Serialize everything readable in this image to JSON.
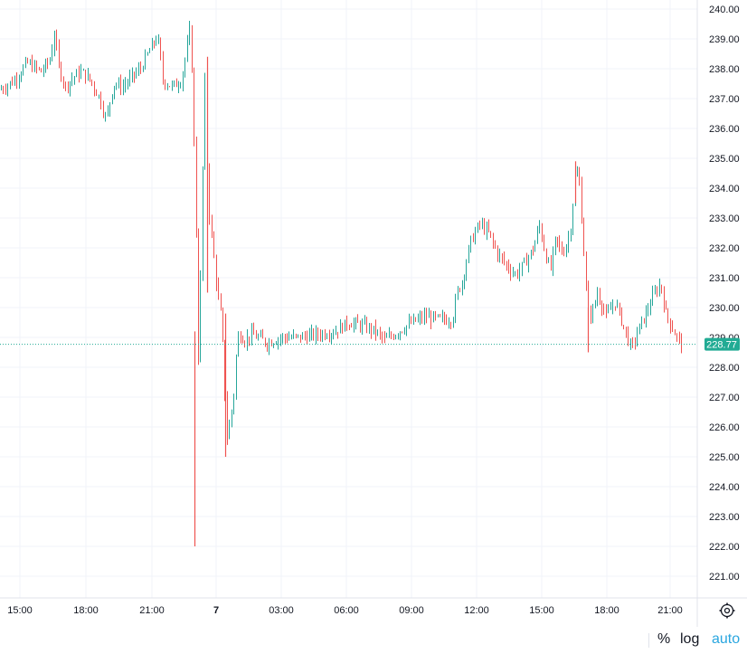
{
  "chart_data": {
    "type": "candlestick",
    "ylim": [
      220.5,
      240.2
    ],
    "y_ticks": [
      "221.00",
      "222.00",
      "223.00",
      "224.00",
      "225.00",
      "226.00",
      "227.00",
      "228.00",
      "229.00",
      "230.00",
      "231.00",
      "232.00",
      "233.00",
      "234.00",
      "235.00",
      "236.00",
      "237.00",
      "238.00",
      "239.00",
      "240.00"
    ],
    "x_ticks": [
      {
        "label": "15:00",
        "bold": false
      },
      {
        "label": "18:00",
        "bold": false
      },
      {
        "label": "21:00",
        "bold": false
      },
      {
        "label": "7",
        "bold": true
      },
      {
        "label": "03:00",
        "bold": false
      },
      {
        "label": "06:00",
        "bold": false
      },
      {
        "label": "09:00",
        "bold": false
      },
      {
        "label": "12:00",
        "bold": false
      },
      {
        "label": "15:00",
        "bold": false
      },
      {
        "label": "18:00",
        "bold": false
      },
      {
        "label": "21:00",
        "bold": false
      }
    ],
    "last_price": 228.77,
    "last_price_label": "228.77",
    "colors": {
      "up": "#26a69a",
      "down": "#ef5350",
      "price_badge": "#22ab94"
    },
    "path_points": [
      [
        0,
        237.3
      ],
      [
        15,
        237.6
      ],
      [
        30,
        238.2
      ],
      [
        45,
        237.9
      ],
      [
        55,
        238.3
      ],
      [
        60,
        239.2
      ],
      [
        65,
        238.0
      ],
      [
        72,
        237.4
      ],
      [
        80,
        237.7
      ],
      [
        90,
        237.9
      ],
      [
        100,
        237.6
      ],
      [
        110,
        237.0
      ],
      [
        117,
        236.3
      ],
      [
        125,
        237.5
      ],
      [
        135,
        237.4
      ],
      [
        145,
        237.7
      ],
      [
        155,
        238.0
      ],
      [
        165,
        238.6
      ],
      [
        174,
        239.1
      ],
      [
        180,
        237.6
      ],
      [
        190,
        237.4
      ],
      [
        200,
        237.6
      ],
      [
        206,
        238.6
      ],
      [
        210,
        239.4
      ],
      [
        213,
        237.0
      ],
      [
        217,
        232.0
      ],
      [
        219,
        228.3
      ],
      [
        222,
        231.5
      ],
      [
        226,
        238.0
      ],
      [
        230,
        233.5
      ],
      [
        235,
        232.0
      ],
      [
        240,
        230.5
      ],
      [
        245,
        229.5
      ],
      [
        248,
        227.3
      ],
      [
        251,
        225.6
      ],
      [
        254,
        226.2
      ],
      [
        258,
        227.0
      ],
      [
        262,
        229.0
      ],
      [
        266,
        229.1
      ],
      [
        270,
        228.9
      ],
      [
        278,
        229.1
      ],
      [
        285,
        229.0
      ],
      [
        295,
        228.8
      ],
      [
        310,
        229.0
      ],
      [
        330,
        229.0
      ],
      [
        350,
        229.1
      ],
      [
        370,
        229.2
      ],
      [
        385,
        229.5
      ],
      [
        400,
        229.4
      ],
      [
        415,
        229.2
      ],
      [
        425,
        228.9
      ],
      [
        440,
        229.2
      ],
      [
        455,
        229.5
      ],
      [
        470,
        229.7
      ],
      [
        485,
        229.6
      ],
      [
        500,
        229.6
      ],
      [
        505,
        230.5
      ],
      [
        510,
        230.8
      ],
      [
        515,
        231.5
      ],
      [
        520,
        232.2
      ],
      [
        530,
        232.8
      ],
      [
        540,
        232.5
      ],
      [
        550,
        231.8
      ],
      [
        560,
        231.4
      ],
      [
        570,
        231.1
      ],
      [
        580,
        231.5
      ],
      [
        590,
        232.0
      ],
      [
        596,
        232.8
      ],
      [
        602,
        231.9
      ],
      [
        608,
        231.2
      ],
      [
        614,
        232.3
      ],
      [
        622,
        231.8
      ],
      [
        630,
        232.5
      ],
      [
        636,
        234.5
      ],
      [
        640,
        234.4
      ],
      [
        645,
        232.0
      ],
      [
        650,
        229.7
      ],
      [
        655,
        229.9
      ],
      [
        660,
        230.5
      ],
      [
        670,
        229.7
      ],
      [
        680,
        230.2
      ],
      [
        690,
        229.3
      ],
      [
        698,
        228.6
      ],
      [
        706,
        229.3
      ],
      [
        714,
        229.8
      ],
      [
        722,
        230.4
      ],
      [
        730,
        230.8
      ],
      [
        736,
        229.8
      ],
      [
        742,
        229.4
      ],
      [
        748,
        229.0
      ],
      [
        755,
        228.77
      ]
    ],
    "spikes": [
      {
        "x": 215,
        "low": 222.0,
        "high": 229.2
      },
      {
        "x": 229,
        "low": 230.5,
        "high": 238.4
      },
      {
        "x": 249,
        "low": 225.0,
        "high": 229.8
      },
      {
        "x": 636,
        "low": 233.5,
        "high": 234.9
      },
      {
        "x": 650,
        "low": 228.5,
        "high": 230.0
      }
    ]
  },
  "scale_controls": {
    "percent": "%",
    "log": "log",
    "auto": "auto"
  },
  "icons": {
    "settings": "gear-icon"
  }
}
